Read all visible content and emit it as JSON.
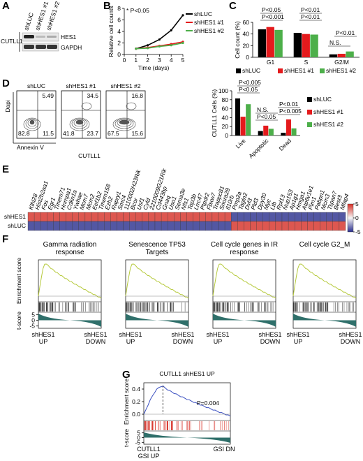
{
  "figure_labels": [
    "A",
    "B",
    "C",
    "D",
    "E",
    "F",
    "G"
  ],
  "panel_a": {
    "lanes": [
      "shLUC",
      "shHES1 #1",
      "shHES1 #2"
    ],
    "cell_line": "CUTLL1",
    "proteins": [
      "HES1",
      "GAPDH"
    ]
  },
  "chart_data": [
    {
      "type": "line",
      "ylabel": "Relative cell counts",
      "xlabel": "Time (days)",
      "x": [
        1,
        2,
        3,
        4,
        5
      ],
      "series": [
        {
          "name": "shLUC",
          "color": "#000000",
          "values": [
            1,
            1.6,
            2.6,
            4.2,
            6.8
          ]
        },
        {
          "name": "shHES1 #1",
          "color": "#e41a1c",
          "values": [
            1,
            1.2,
            1.5,
            1.8,
            2.2
          ]
        },
        {
          "name": "shHES1 #2",
          "color": "#4daf4a",
          "values": [
            1,
            1.1,
            1.4,
            1.6,
            2.0
          ]
        }
      ],
      "xlim": [
        0,
        5
      ],
      "ylim": [
        0,
        8
      ],
      "xticks": [
        0,
        1,
        2,
        3,
        4,
        5
      ],
      "yticks": [
        0,
        2,
        4,
        6,
        8
      ],
      "annotations": [
        "* P<0.05"
      ]
    },
    {
      "type": "bar",
      "ylabel": "Cell count (%)",
      "categories": [
        "G1",
        "S",
        "G2/M"
      ],
      "series": [
        {
          "name": "shLUC",
          "color": "#000000",
          "values": [
            48,
            42,
            5
          ]
        },
        {
          "name": "shHES1 #1",
          "color": "#e41a1c",
          "values": [
            52,
            40,
            6
          ]
        },
        {
          "name": "shHES1 #2",
          "color": "#4daf4a",
          "values": [
            47,
            39,
            10
          ]
        }
      ],
      "ylim": [
        0,
        60
      ],
      "yticks": [
        0,
        20,
        40,
        60
      ],
      "annotations": [
        "P<0.05",
        "P<0.001",
        "P<0.01",
        "P<0.01",
        "P<0.01",
        "N.S."
      ],
      "legend": "bottom"
    },
    {
      "type": "bar",
      "ylabel": "CUTLL1 Cells (%)",
      "categories": [
        "Live",
        "Apoptotic",
        "Dead"
      ],
      "series": [
        {
          "name": "shLUC",
          "color": "#000000",
          "values": [
            83,
            10,
            6
          ]
        },
        {
          "name": "shHES1 #1",
          "color": "#e41a1c",
          "values": [
            42,
            22,
            36
          ]
        },
        {
          "name": "shHES1 #2",
          "color": "#4daf4a",
          "values": [
            70,
            15,
            16
          ]
        }
      ],
      "ylim": [
        0,
        100
      ],
      "yticks": [
        0,
        20,
        40,
        60,
        80,
        100
      ],
      "annotations": [
        "P<0.005",
        "P<0.05",
        "N.S.",
        "P<0.05",
        "P<0.01",
        "P<0.005"
      ],
      "legend": "right"
    }
  ],
  "panel_d_flow": {
    "plots": [
      {
        "title": "shLUC",
        "quadrants": [
          5.49,
          82.8,
          11.5
        ]
      },
      {
        "title": "shHES1 #1",
        "quadrants": [
          34.5,
          41.8,
          23.7
        ]
      },
      {
        "title": "shHES1 #2",
        "quadrants": [
          16.8,
          67.5,
          15.6
        ]
      }
    ],
    "ylabel": "Dapi",
    "xlabel": "Annexin V",
    "cell_line": "CUTLL1"
  },
  "panel_e": {
    "genes": [
      "Klhl28",
      "Hist2h2aa1",
      "Fos",
      "Egr1",
      "Tmem71",
      "Hnrnpa1",
      "Cdkn1a",
      "Ywhae",
      "Mcm7",
      "Mcm2",
      "Eef1b2",
      "Tmem158",
      "Ezh2",
      "Rapry1",
      "Smc4",
      "1110002H23Rik",
      "Bcor",
      "Usf1",
      "Cyld",
      "2210009G21Rik",
      "Cd443bp",
      "Gnaq",
      "Uso1",
      "Sema3e",
      "Nfs1",
      "Top3b",
      "Lrrc47",
      "Ptpdr2",
      "Fbxw7",
      "Trappc81",
      "Snora28",
      "Il10rb",
      "Pmp2a",
      "Tagln2",
      "Dvl3",
      "Pld3",
      "Dpy30",
      "Myc",
      "Ltb",
      "Rpl13",
      "Nup153",
      "Ap1g1",
      "Hmga1",
      "Atp6v1e1",
      "Pim1",
      "Pabpn1",
      "Mcm3",
      "Tspan7",
      "Best3",
      "Mfap4"
    ],
    "rows": [
      "shHES1",
      "shLUC"
    ],
    "values": [
      [
        4,
        4,
        4,
        4,
        4,
        4,
        4,
        4,
        4,
        4,
        4,
        4,
        4,
        4,
        4,
        4,
        4,
        4,
        4,
        4,
        4,
        4,
        4,
        4,
        4,
        4,
        4,
        4,
        4,
        4,
        4,
        4,
        -4,
        -4,
        -4,
        -4,
        -4,
        -4,
        -4,
        -4,
        -4,
        -4,
        -4,
        -4,
        -4,
        -4,
        -4,
        -4,
        -4,
        -4
      ],
      [
        -4,
        -4,
        -4,
        -4,
        -4,
        -4,
        -4,
        -4,
        -4,
        -4,
        -4,
        -4,
        -4,
        -4,
        -4,
        -4,
        -4,
        -4,
        -4,
        -4,
        -4,
        -4,
        -4,
        -4,
        -4,
        -4,
        -4,
        -4,
        -4,
        -4,
        -4,
        -4,
        4,
        4,
        4,
        4,
        4,
        4,
        4,
        4,
        4,
        4,
        4,
        4,
        4,
        4,
        4,
        4,
        4,
        4
      ]
    ],
    "clim": [
      -5,
      5
    ],
    "colorbar_ticks": [
      5,
      0,
      -5
    ]
  },
  "panel_f": {
    "plots": [
      {
        "title": "Gamma radiation response"
      },
      {
        "title": "Senescence TP53 Targets"
      },
      {
        "title": "Cell cycle genes in IR response"
      },
      {
        "title": "Cell cycle G2_M"
      }
    ],
    "ylabel_es": "Enrichment score",
    "ylabel_t": "t-score",
    "t_ticks": [
      5,
      0,
      -5
    ],
    "t_lim": [
      -7,
      7
    ],
    "xlabel_left": "shHES1 UP",
    "xlabel_right": "shHES1 DOWN"
  },
  "panel_g": {
    "title": "CUTLL1 shHES1 UP",
    "ylabel_es": "Enrichment score",
    "ylabel_t": "t-score",
    "es_lim": [
      -0.1,
      0.5
    ],
    "es_ticks": [
      0.4,
      0.2,
      {
        "value": 0,
        "label": "0.0"
      }
    ],
    "t_lim": [
      -7,
      7
    ],
    "t_ticks": [
      5,
      0,
      -5
    ],
    "annotation": "P=0.004",
    "xlabel_left": "CUTLL1 GSI UP",
    "xlabel_right": "GSI DN"
  }
}
